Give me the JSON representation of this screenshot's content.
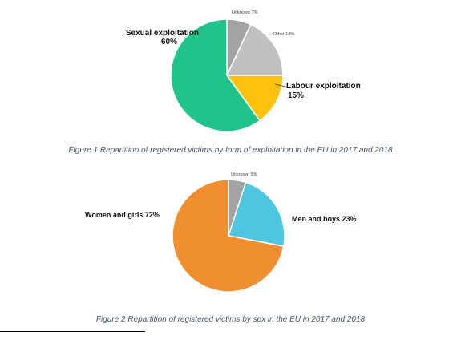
{
  "figures": [
    {
      "caption": "Figure 1 Repartition of registered victims by form of exploitation in the EU in 2017 and 2018"
    },
    {
      "caption": "Figure 2 Repartition of registered victims by sex in the EU in 2017 and 2018"
    }
  ],
  "chart_data": [
    {
      "type": "pie",
      "title": "",
      "slices": [
        {
          "name": "Unknown",
          "value": 7,
          "label_name": "Unknown",
          "label_value": "7%",
          "color": "#a3a3a3"
        },
        {
          "name": "Other",
          "value": 18,
          "label_name": "Other",
          "label_value": "18%",
          "color": "#c0c0c0"
        },
        {
          "name": "Labour exploitation",
          "value": 15,
          "label_name": "Labour exploitation",
          "label_value": "15%",
          "color": "#fdc10e"
        },
        {
          "name": "Sexual exploitation",
          "value": 60,
          "label_name": "Sexual exploitation",
          "label_value": "60%",
          "color": "#20c38a"
        }
      ]
    },
    {
      "type": "pie",
      "title": "",
      "slices": [
        {
          "name": "Unknown",
          "value": 5,
          "label_name": "Unknown",
          "label_value": "5%",
          "color": "#a3a3a3"
        },
        {
          "name": "Men and boys",
          "value": 23,
          "label_name": "Men and boys",
          "label_value": "23%",
          "color": "#4ec6e0"
        },
        {
          "name": "Women and girls",
          "value": 72,
          "label_name": "Women and girls",
          "label_value": "72%",
          "color": "#f08f2f"
        }
      ]
    }
  ]
}
